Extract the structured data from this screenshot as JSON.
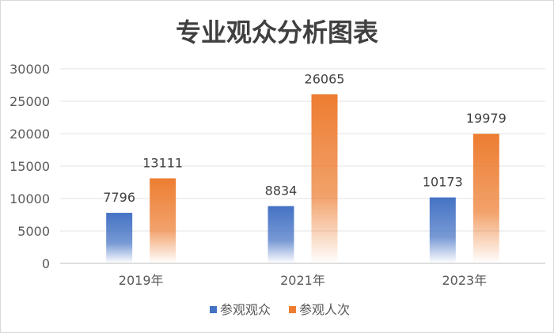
{
  "chart_data": {
    "type": "bar",
    "title": "专业观众分析图表",
    "categories": [
      "2019年",
      "2021年",
      "2023年"
    ],
    "series": [
      {
        "name": "参观观众",
        "values": [
          7796,
          8834,
          10173
        ],
        "color": "#4472c4"
      },
      {
        "name": "参观人次",
        "values": [
          13111,
          26065,
          19979
        ],
        "color": "#ed7d31"
      }
    ],
    "xlabel": "",
    "ylabel": "",
    "ylim": [
      0,
      30000
    ],
    "yticks": [
      0,
      5000,
      10000,
      15000,
      20000,
      25000,
      30000
    ],
    "grid": true,
    "legend_position": "bottom"
  }
}
